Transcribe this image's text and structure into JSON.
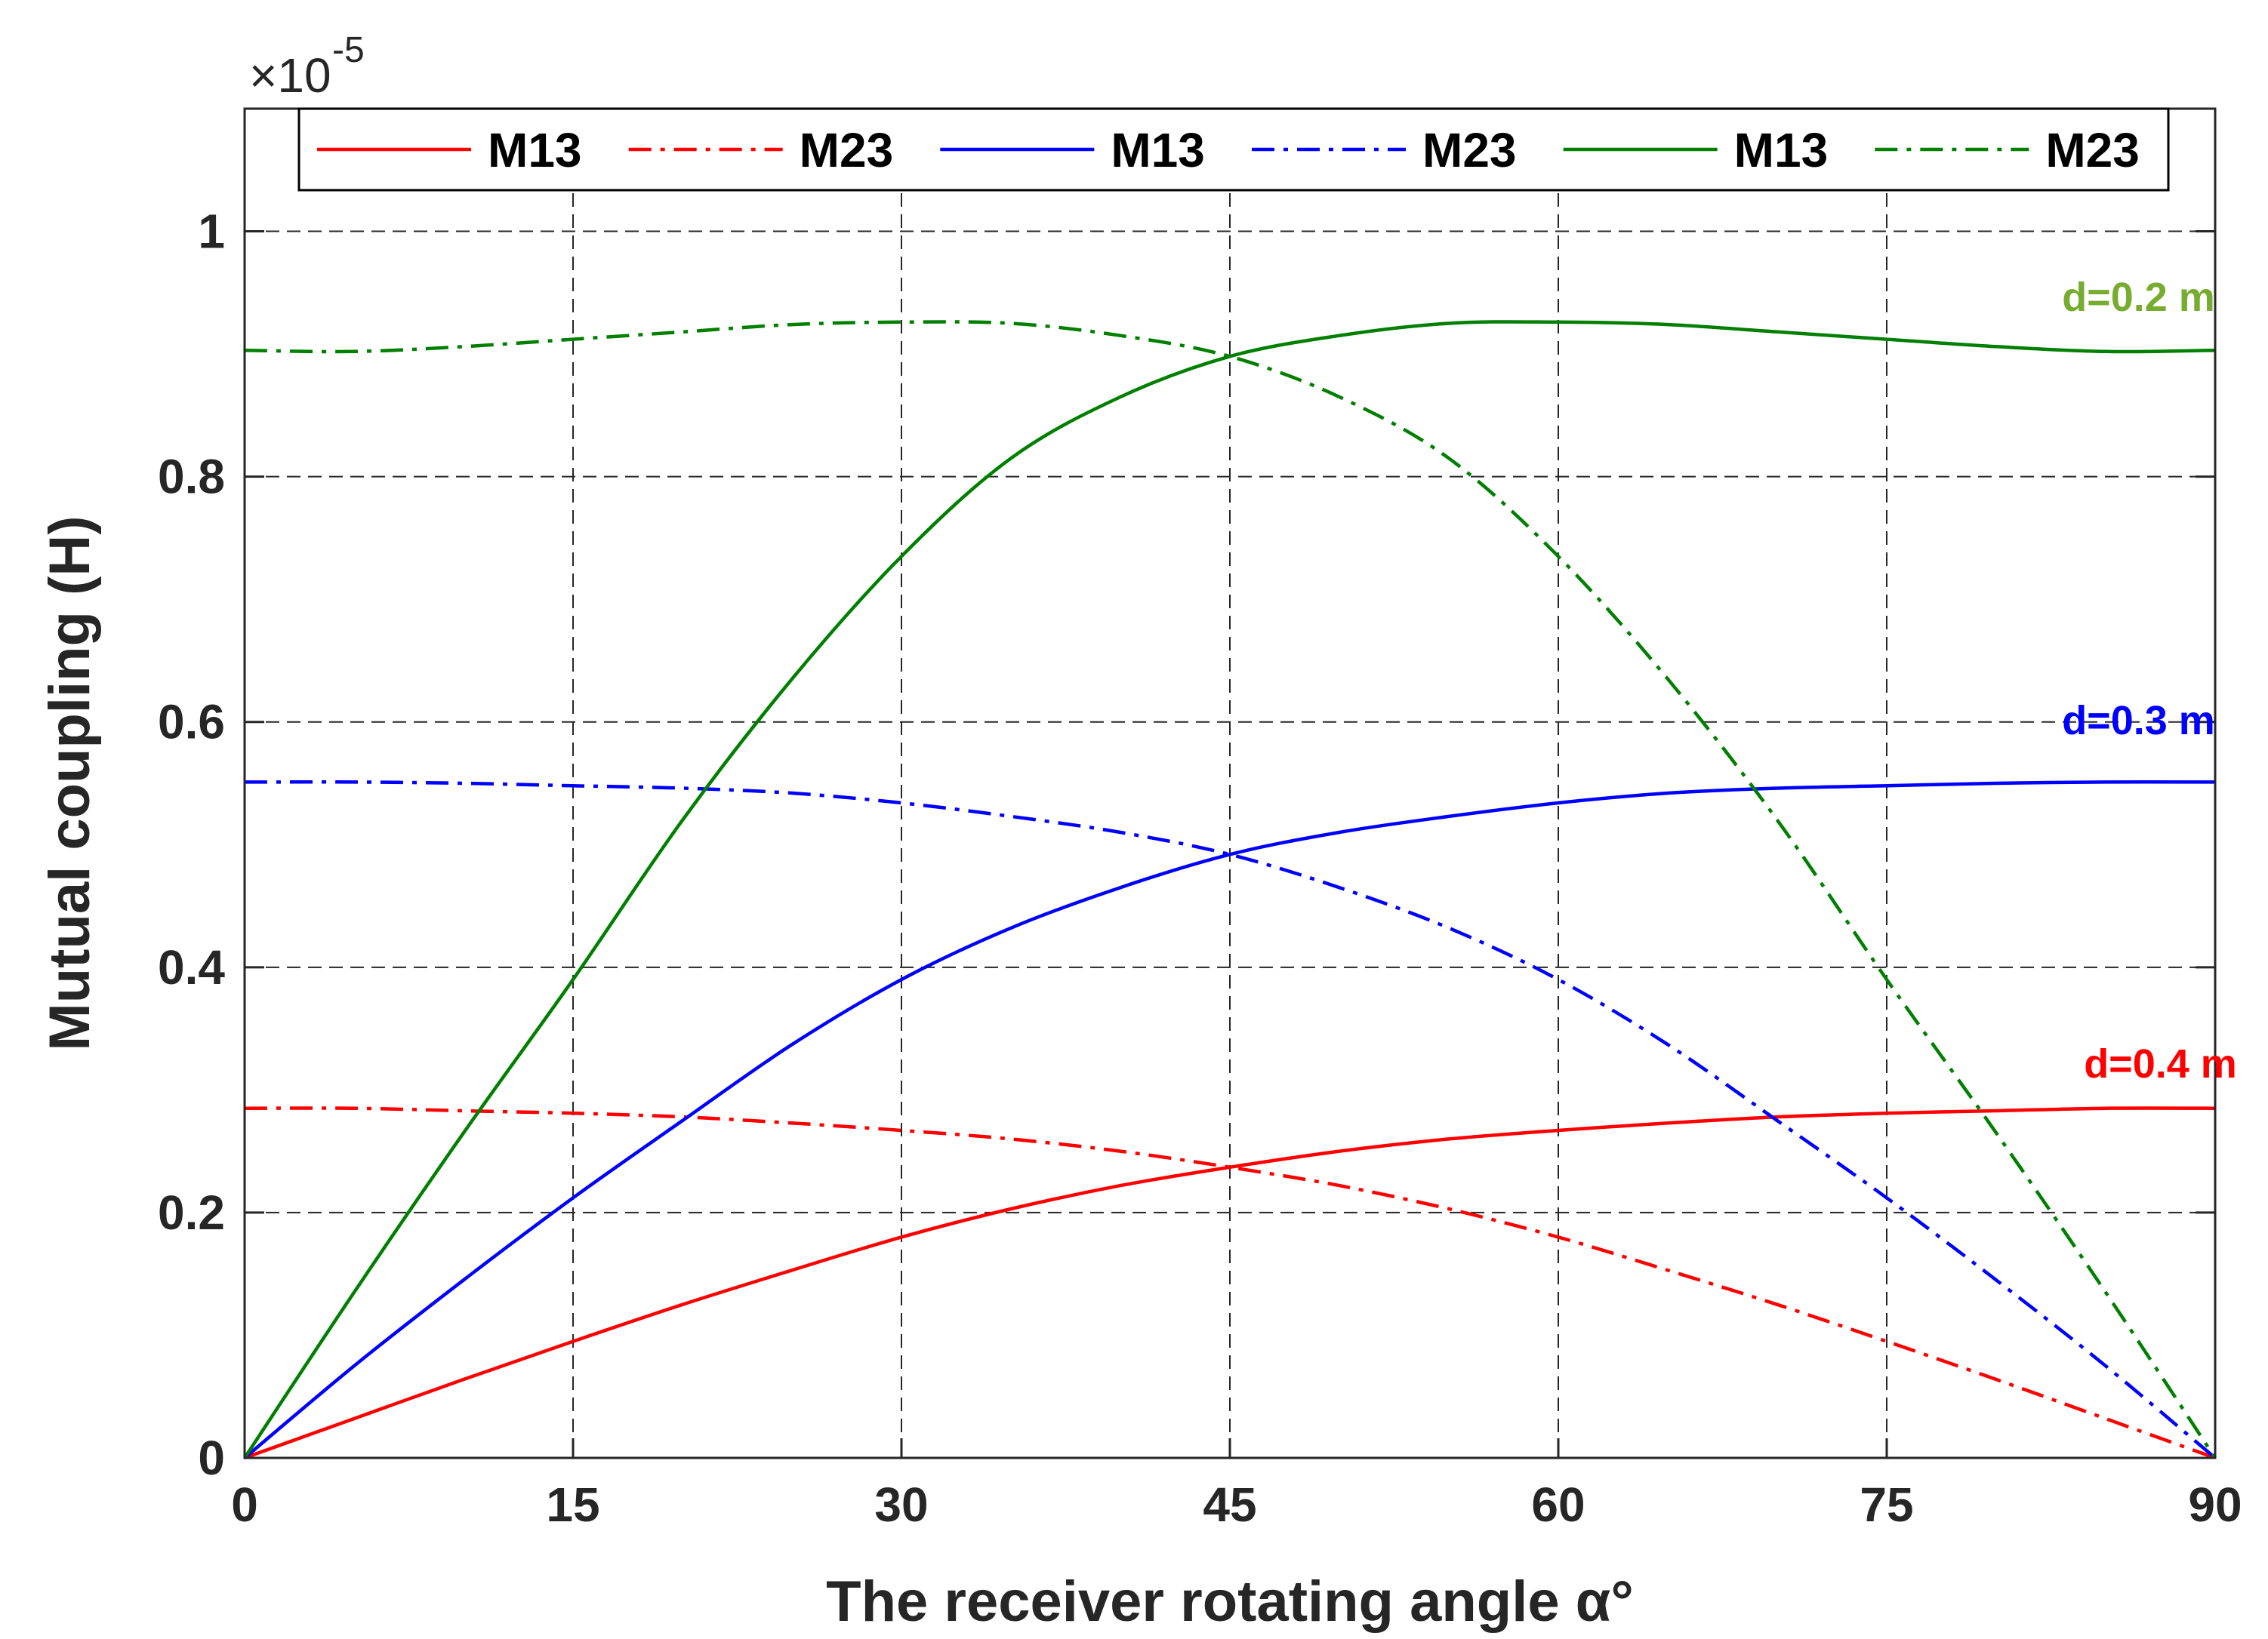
{
  "chart_data": {
    "type": "line",
    "title": "",
    "xlabel": "The receiver rotating angle α°",
    "ylabel": "Mutual coupling (H)",
    "y_exponent_base": "×10",
    "y_exponent_power": "-5",
    "xlim": [
      0,
      90
    ],
    "ylim": [
      0,
      1.1
    ],
    "xticks": [
      0,
      15,
      30,
      45,
      60,
      75,
      90
    ],
    "yticks": [
      0,
      0.2,
      0.4,
      0.6,
      0.8,
      1
    ],
    "xtick_labels": [
      "0",
      "15",
      "30",
      "45",
      "60",
      "75",
      "90"
    ],
    "ytick_labels": [
      "0",
      "0.2",
      "0.4",
      "0.6",
      "0.8",
      "1"
    ],
    "grid": true,
    "legend_position": "top",
    "x": [
      0,
      5,
      10,
      15,
      20,
      25,
      30,
      35,
      40,
      45,
      50,
      55,
      60,
      65,
      70,
      75,
      80,
      85,
      90
    ],
    "series": [
      {
        "name": "M13",
        "color": "#ff0000",
        "style": "solid",
        "values": [
          0,
          0.032,
          0.064,
          0.095,
          0.125,
          0.153,
          0.18,
          0.203,
          0.222,
          0.237,
          0.25,
          0.26,
          0.267,
          0.273,
          0.278,
          0.281,
          0.283,
          0.285,
          0.285
        ]
      },
      {
        "name": "M23",
        "color": "#ff0000",
        "style": "dashdot",
        "values": [
          0.285,
          0.285,
          0.283,
          0.281,
          0.278,
          0.273,
          0.267,
          0.26,
          0.25,
          0.237,
          0.222,
          0.203,
          0.18,
          0.153,
          0.125,
          0.095,
          0.064,
          0.032,
          0
        ]
      },
      {
        "name": "M13",
        "color": "#0000ff",
        "style": "solid",
        "values": [
          0,
          0.075,
          0.145,
          0.212,
          0.275,
          0.337,
          0.39,
          0.432,
          0.465,
          0.492,
          0.51,
          0.523,
          0.534,
          0.542,
          0.546,
          0.548,
          0.55,
          0.551,
          0.551
        ]
      },
      {
        "name": "M23",
        "color": "#0000ff",
        "style": "dashdot",
        "values": [
          0.551,
          0.551,
          0.55,
          0.548,
          0.546,
          0.542,
          0.534,
          0.523,
          0.51,
          0.492,
          0.465,
          0.432,
          0.39,
          0.337,
          0.275,
          0.212,
          0.145,
          0.075,
          0
        ]
      },
      {
        "name": "M13",
        "color": "#007f00",
        "style": "solid",
        "values": [
          0,
          0.135,
          0.265,
          0.39,
          0.52,
          0.635,
          0.735,
          0.815,
          0.865,
          0.898,
          0.915,
          0.925,
          0.926,
          0.924,
          0.918,
          0.912,
          0.906,
          0.902,
          0.903
        ]
      },
      {
        "name": "M23",
        "color": "#007f00",
        "style": "dashdot",
        "values": [
          0.903,
          0.902,
          0.906,
          0.912,
          0.918,
          0.924,
          0.926,
          0.925,
          0.915,
          0.898,
          0.865,
          0.815,
          0.735,
          0.635,
          0.52,
          0.39,
          0.265,
          0.135,
          0
        ]
      }
    ],
    "annotations": [
      {
        "text": "d=0.2 m",
        "x": 86.5,
        "y": 0.935,
        "color": "#77ac30"
      },
      {
        "text": "d=0.3 m",
        "x": 86.5,
        "y": 0.59,
        "color": "#0000ff"
      },
      {
        "text": "d=0.4 m",
        "x": 87.5,
        "y": 0.31,
        "color": "#ff0000"
      }
    ]
  }
}
